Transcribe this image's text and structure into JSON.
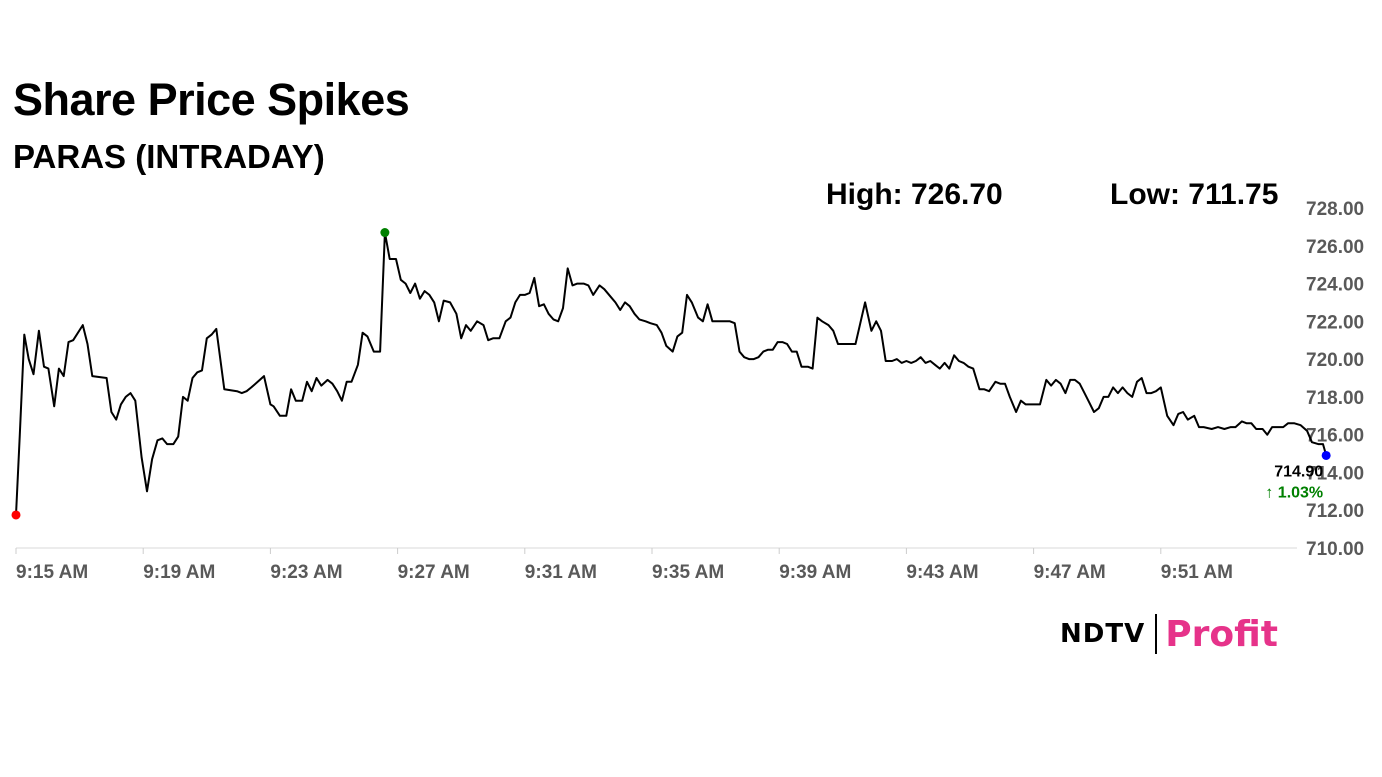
{
  "header": {
    "title": "Share Price Spikes",
    "subtitle": "PARAS (INTRADAY)",
    "high_label": "High: 726.70",
    "low_label": "Low: 711.75"
  },
  "logo": {
    "primary": "NDTV",
    "secondary": "Profit",
    "secondary_color": "#e6338a"
  },
  "chart_data": {
    "type": "line",
    "title": "",
    "xlabel": "",
    "ylabel": "",
    "ylim": [
      710,
      728
    ],
    "yticks": [
      710,
      712,
      714,
      716,
      718,
      720,
      722,
      724,
      726,
      728
    ],
    "ytick_labels": [
      "710.00",
      "712.00",
      "714.00",
      "716.00",
      "718.00",
      "720.00",
      "722.00",
      "724.00",
      "726.00",
      "728.00"
    ],
    "xlim": [
      0,
      40
    ],
    "xticks": [
      0,
      4,
      8,
      12,
      16,
      20,
      24,
      28,
      32,
      36
    ],
    "xtick_labels": [
      "9:15 AM",
      "9:19 AM",
      "9:23 AM",
      "9:27 AM",
      "9:31 AM",
      "9:35 AM",
      "9:39 AM",
      "9:43 AM",
      "9:47 AM",
      "9:51 AM"
    ],
    "x_unit": "minutes after 9:15 AM",
    "grid": false,
    "line_color": "#000000",
    "series": [
      {
        "values": [
          [
            0.0,
            711.75
          ],
          [
            0.12,
            716.0
          ],
          [
            0.26,
            721.3
          ],
          [
            0.4,
            720.0
          ],
          [
            0.55,
            719.2
          ],
          [
            0.72,
            721.5
          ],
          [
            0.88,
            719.6
          ],
          [
            1.02,
            719.5
          ],
          [
            1.2,
            717.5
          ],
          [
            1.35,
            719.5
          ],
          [
            1.5,
            719.1
          ],
          [
            1.65,
            720.9
          ],
          [
            1.8,
            721.0
          ],
          [
            2.1,
            721.8
          ],
          [
            2.25,
            720.8
          ],
          [
            2.4,
            719.1
          ],
          [
            2.85,
            719.0
          ],
          [
            3.0,
            717.2
          ],
          [
            3.15,
            716.8
          ],
          [
            3.3,
            717.6
          ],
          [
            3.45,
            718.0
          ],
          [
            3.6,
            718.2
          ],
          [
            3.75,
            717.8
          ],
          [
            3.95,
            714.8
          ],
          [
            4.12,
            713.0
          ],
          [
            4.28,
            714.7
          ],
          [
            4.45,
            715.7
          ],
          [
            4.6,
            715.8
          ],
          [
            4.75,
            715.5
          ],
          [
            4.95,
            715.5
          ],
          [
            5.1,
            715.9
          ],
          [
            5.25,
            718.0
          ],
          [
            5.4,
            717.8
          ],
          [
            5.55,
            719.0
          ],
          [
            5.7,
            719.3
          ],
          [
            5.85,
            719.4
          ],
          [
            6.0,
            721.1
          ],
          [
            6.15,
            721.3
          ],
          [
            6.3,
            721.6
          ],
          [
            6.55,
            718.4
          ],
          [
            6.95,
            718.3
          ],
          [
            7.1,
            718.2
          ],
          [
            7.25,
            718.3
          ],
          [
            7.4,
            718.5
          ],
          [
            7.6,
            718.8
          ],
          [
            7.8,
            719.1
          ],
          [
            8.0,
            717.6
          ],
          [
            8.1,
            717.5
          ],
          [
            8.3,
            717.0
          ],
          [
            8.5,
            717.0
          ],
          [
            8.65,
            718.4
          ],
          [
            8.8,
            717.8
          ],
          [
            9.0,
            717.8
          ],
          [
            9.15,
            718.8
          ],
          [
            9.3,
            718.3
          ],
          [
            9.45,
            719.0
          ],
          [
            9.6,
            718.6
          ],
          [
            9.8,
            718.9
          ],
          [
            9.95,
            718.7
          ],
          [
            10.1,
            718.3
          ],
          [
            10.25,
            717.8
          ],
          [
            10.4,
            718.8
          ],
          [
            10.55,
            718.8
          ],
          [
            10.75,
            719.7
          ],
          [
            10.9,
            721.4
          ],
          [
            11.05,
            721.2
          ],
          [
            11.25,
            720.4
          ],
          [
            11.45,
            720.4
          ],
          [
            11.6,
            726.7
          ],
          [
            11.75,
            725.3
          ],
          [
            11.95,
            725.3
          ],
          [
            12.1,
            724.2
          ],
          [
            12.25,
            724.0
          ],
          [
            12.4,
            723.5
          ],
          [
            12.55,
            724.0
          ],
          [
            12.7,
            723.2
          ],
          [
            12.85,
            723.6
          ],
          [
            13.0,
            723.4
          ],
          [
            13.15,
            723.0
          ],
          [
            13.3,
            722.0
          ],
          [
            13.45,
            723.1
          ],
          [
            13.65,
            723.0
          ],
          [
            13.85,
            722.4
          ],
          [
            14.0,
            721.1
          ],
          [
            14.15,
            721.8
          ],
          [
            14.3,
            721.5
          ],
          [
            14.5,
            722.0
          ],
          [
            14.7,
            721.8
          ],
          [
            14.85,
            721.0
          ],
          [
            15.0,
            721.1
          ],
          [
            15.2,
            721.1
          ],
          [
            15.4,
            722.0
          ],
          [
            15.55,
            722.2
          ],
          [
            15.7,
            723.0
          ],
          [
            15.85,
            723.4
          ],
          [
            16.0,
            723.4
          ],
          [
            16.15,
            723.5
          ],
          [
            16.3,
            724.3
          ],
          [
            16.45,
            722.8
          ],
          [
            16.6,
            722.9
          ],
          [
            16.75,
            722.4
          ],
          [
            16.9,
            722.1
          ],
          [
            17.05,
            722.0
          ],
          [
            17.2,
            722.7
          ],
          [
            17.35,
            724.8
          ],
          [
            17.5,
            723.9
          ],
          [
            17.65,
            724.0
          ],
          [
            17.85,
            724.0
          ],
          [
            18.0,
            723.9
          ],
          [
            18.15,
            723.4
          ],
          [
            18.35,
            723.9
          ],
          [
            18.5,
            723.7
          ],
          [
            18.7,
            723.3
          ],
          [
            18.85,
            723.0
          ],
          [
            19.0,
            722.6
          ],
          [
            19.15,
            723.0
          ],
          [
            19.3,
            722.8
          ],
          [
            19.45,
            722.4
          ],
          [
            19.6,
            722.1
          ],
          [
            19.8,
            722.0
          ],
          [
            19.95,
            721.9
          ],
          [
            20.15,
            721.8
          ],
          [
            20.3,
            721.4
          ],
          [
            20.45,
            720.7
          ],
          [
            20.65,
            720.4
          ],
          [
            20.8,
            721.2
          ],
          [
            20.95,
            721.4
          ],
          [
            21.1,
            723.4
          ],
          [
            21.25,
            723.0
          ],
          [
            21.45,
            722.2
          ],
          [
            21.6,
            722.0
          ],
          [
            21.75,
            722.9
          ],
          [
            21.9,
            722.0
          ],
          [
            22.1,
            722.0
          ],
          [
            22.3,
            722.0
          ],
          [
            22.45,
            722.0
          ],
          [
            22.6,
            721.9
          ],
          [
            22.75,
            720.4
          ],
          [
            22.9,
            720.1
          ],
          [
            23.05,
            720.0
          ],
          [
            23.2,
            720.0
          ],
          [
            23.35,
            720.1
          ],
          [
            23.5,
            720.4
          ],
          [
            23.65,
            720.5
          ],
          [
            23.8,
            720.5
          ],
          [
            23.95,
            720.9
          ],
          [
            24.1,
            720.9
          ],
          [
            24.25,
            720.8
          ],
          [
            24.4,
            720.4
          ],
          [
            24.55,
            720.4
          ],
          [
            24.7,
            719.6
          ],
          [
            24.9,
            719.6
          ],
          [
            25.05,
            719.5
          ],
          [
            25.2,
            722.2
          ],
          [
            25.35,
            722.0
          ],
          [
            25.55,
            721.8
          ],
          [
            25.7,
            721.5
          ],
          [
            25.85,
            720.8
          ],
          [
            26.05,
            720.8
          ],
          [
            26.25,
            720.8
          ],
          [
            26.4,
            720.8
          ],
          [
            26.55,
            721.9
          ],
          [
            26.7,
            723.0
          ],
          [
            26.9,
            721.5
          ],
          [
            27.05,
            722.0
          ],
          [
            27.2,
            721.5
          ],
          [
            27.35,
            719.9
          ],
          [
            27.55,
            719.9
          ],
          [
            27.7,
            720.0
          ],
          [
            27.85,
            719.8
          ],
          [
            28.0,
            719.9
          ],
          [
            28.15,
            719.8
          ],
          [
            28.3,
            719.9
          ],
          [
            28.45,
            720.1
          ],
          [
            28.6,
            719.8
          ],
          [
            28.75,
            719.9
          ],
          [
            28.9,
            719.7
          ],
          [
            29.05,
            719.5
          ],
          [
            29.2,
            719.8
          ],
          [
            29.35,
            719.5
          ],
          [
            29.5,
            720.2
          ],
          [
            29.65,
            719.9
          ],
          [
            29.8,
            719.8
          ],
          [
            29.95,
            719.6
          ],
          [
            30.1,
            719.5
          ],
          [
            30.3,
            718.4
          ],
          [
            30.45,
            718.4
          ],
          [
            30.6,
            718.3
          ],
          [
            30.8,
            718.8
          ],
          [
            30.95,
            718.7
          ],
          [
            31.1,
            718.7
          ],
          [
            31.25,
            718.0
          ],
          [
            31.45,
            717.2
          ],
          [
            31.6,
            717.8
          ],
          [
            31.75,
            717.6
          ],
          [
            31.9,
            717.6
          ],
          [
            32.05,
            717.6
          ],
          [
            32.2,
            717.6
          ],
          [
            32.4,
            718.9
          ],
          [
            32.55,
            718.6
          ],
          [
            32.7,
            718.9
          ],
          [
            32.85,
            718.7
          ],
          [
            33.0,
            718.2
          ],
          [
            33.15,
            718.9
          ],
          [
            33.3,
            718.9
          ],
          [
            33.45,
            718.7
          ],
          [
            33.6,
            718.2
          ],
          [
            33.75,
            717.7
          ],
          [
            33.9,
            717.2
          ],
          [
            34.05,
            717.4
          ],
          [
            34.2,
            718.0
          ],
          [
            34.35,
            718.0
          ],
          [
            34.5,
            718.5
          ],
          [
            34.65,
            718.2
          ],
          [
            34.8,
            718.5
          ],
          [
            34.95,
            718.2
          ],
          [
            35.1,
            718.0
          ],
          [
            35.25,
            718.8
          ],
          [
            35.4,
            719.0
          ],
          [
            35.55,
            718.2
          ],
          [
            35.7,
            718.2
          ],
          [
            35.85,
            718.3
          ],
          [
            36.0,
            718.5
          ],
          [
            36.2,
            717.0
          ],
          [
            36.4,
            716.5
          ],
          [
            36.55,
            717.1
          ],
          [
            36.7,
            717.2
          ],
          [
            36.85,
            716.8
          ],
          [
            37.05,
            717.0
          ],
          [
            37.2,
            716.4
          ],
          [
            37.35,
            716.4
          ],
          [
            37.6,
            716.3
          ],
          [
            37.8,
            716.4
          ],
          [
            38.0,
            716.3
          ],
          [
            38.2,
            716.4
          ],
          [
            38.35,
            716.4
          ],
          [
            38.55,
            716.7
          ],
          [
            38.7,
            716.6
          ],
          [
            38.85,
            716.6
          ],
          [
            39.0,
            716.3
          ],
          [
            39.2,
            716.3
          ],
          [
            39.35,
            716.0
          ],
          [
            39.5,
            716.4
          ],
          [
            39.7,
            716.4
          ],
          [
            39.85,
            716.4
          ],
          [
            40.0,
            716.6
          ],
          [
            40.2,
            716.6
          ],
          [
            40.4,
            716.5
          ],
          [
            40.6,
            716.2
          ],
          [
            40.75,
            715.6
          ],
          [
            40.95,
            715.5
          ],
          [
            41.1,
            715.5
          ],
          [
            41.2,
            714.9
          ]
        ]
      }
    ],
    "markers": [
      {
        "label": "open",
        "x": 0.0,
        "y": 711.75,
        "color": "#ff0000"
      },
      {
        "label": "high",
        "x": 11.6,
        "y": 726.7,
        "color": "#008000"
      },
      {
        "label": "last",
        "x": 41.2,
        "y": 714.9,
        "color": "#0000ff"
      }
    ],
    "last_price_label": "714.90",
    "change_label": "↑ 1.03%",
    "change_color": "#008000"
  }
}
